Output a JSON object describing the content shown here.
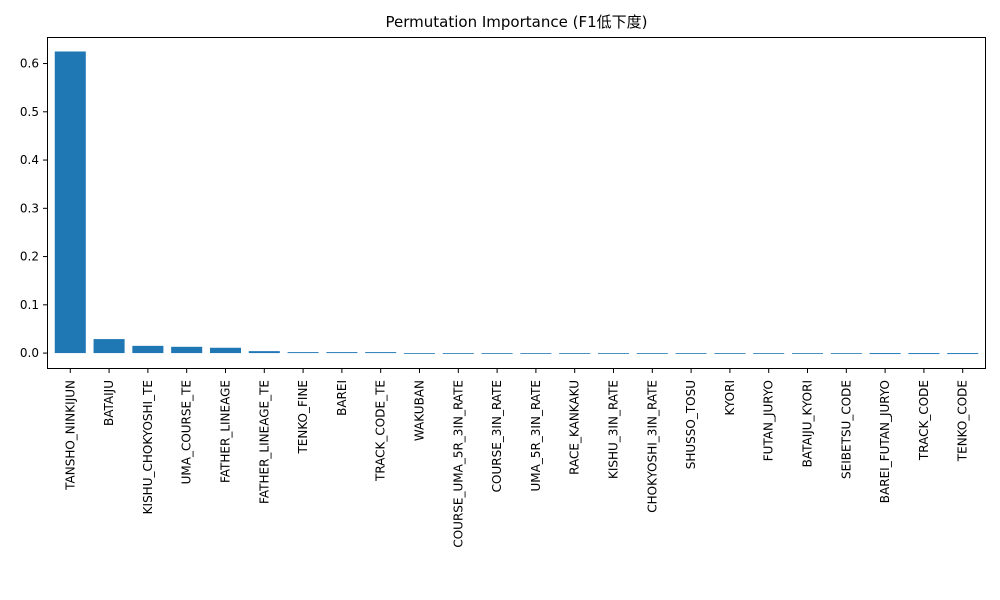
{
  "chart_data": {
    "type": "bar",
    "title": "Permutation Importance (F1低下度)",
    "xlabel": "",
    "ylabel": "",
    "ylim": [
      -0.033,
      0.655
    ],
    "yticks": [
      0.0,
      0.1,
      0.2,
      0.3,
      0.4,
      0.5,
      0.6
    ],
    "ytick_labels": [
      "0.0",
      "0.1",
      "0.2",
      "0.3",
      "0.4",
      "0.5",
      "0.6"
    ],
    "bar_color": "#1f77b4",
    "grid": false,
    "categories": [
      "TANSHO_NINKIJUN",
      "BATAIJU",
      "KISHU_CHOKYOSHI_TE",
      "UMA_COURSE_TE",
      "FATHER_LINEAGE",
      "FATHER_LINEAGE_TE",
      "TENKO_FINE",
      "BAREI",
      "TRACK_CODE_TE",
      "WAKUBAN",
      "COURSE_UMA_5R_3IN_RATE",
      "COURSE_3IN_RATE",
      "UMA_5R_3IN_RATE",
      "RACE_KANKAKU",
      "KISHU_3IN_RATE",
      "CHOKYOSHI_3IN_RATE",
      "SHUSSO_TOSU",
      "KYORI",
      "FUTAN_JURYO",
      "BATAIJU_KYORI",
      "SEIBETSU_CODE",
      "BAREI_FUTAN_JURYO",
      "TRACK_CODE",
      "TENKO_CODE"
    ],
    "values": [
      0.625,
      0.029,
      0.015,
      0.013,
      0.011,
      0.004,
      0.002,
      0.002,
      0.002,
      0.0,
      0.0,
      0.0,
      0.0,
      0.0,
      0.0,
      0.0,
      0.0,
      -0.001,
      -0.001,
      -0.001,
      -0.001,
      -0.002,
      -0.002,
      -0.002
    ]
  }
}
